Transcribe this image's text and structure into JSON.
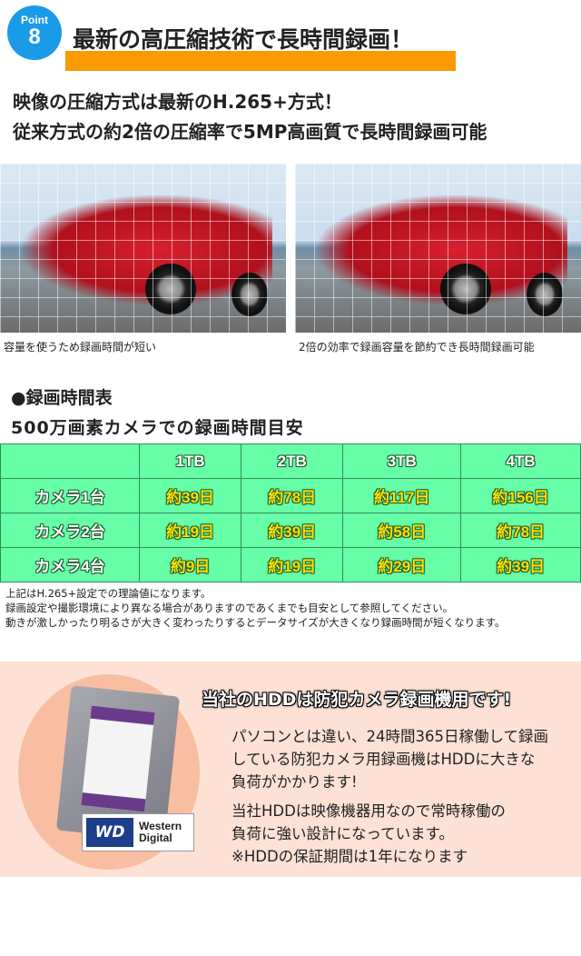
{
  "header": {
    "badge_word": "Point",
    "badge_number": "8",
    "title": "最新の高圧縮技術で長時間録画！",
    "accent": "#fa9a00",
    "badge_color": "#1a9be8"
  },
  "intro": {
    "line1": "映像の圧縮方式は最新のH.265+方式！",
    "line2": "従来方式の約2倍の圧縮率で5MP高画質で長時間録画可能"
  },
  "comparison": {
    "left_caption": "容量を使うため録画時間が短い",
    "right_caption": "2倍の効率で録画容量を節約でき長時間録画可能"
  },
  "recording": {
    "heading": "●録画時間表",
    "subheading": "500万画素カメラでの録画時間目安",
    "columns": [
      "",
      "1TB",
      "2TB",
      "3TB",
      "4TB"
    ],
    "rows": [
      {
        "label": "カメラ1台",
        "values": [
          "約39日",
          "約78日",
          "約117日",
          "約156日"
        ]
      },
      {
        "label": "カメラ2台",
        "values": [
          "約19日",
          "約39日",
          "約58日",
          "約78日"
        ]
      },
      {
        "label": "カメラ4台",
        "values": [
          "約9日",
          "約19日",
          "約29日",
          "約39日"
        ]
      }
    ],
    "notes": [
      "上記はH.265+設定での理論値になります。",
      "録画設定や撮影環境により異なる場合がありますのであくまでも目安として参照してください。",
      "動きが激しかったり明るさが大きく変わったりするとデータサイズが大きくなり録画時間が短くなります。"
    ],
    "table_color": "#66ffa8"
  },
  "hdd": {
    "heading": "当社のHDDは防犯カメラ録画機用です!",
    "para1": [
      "パソコンとは違い、24時間365日稼働して録画",
      "している防犯カメラ用録画機はHDDに大きな",
      "負荷がかかります!"
    ],
    "para2": [
      "当社HDDは映像機器用なので常時稼働の",
      "負荷に強い設計になっています。",
      "※HDDの保証期間は1年になります"
    ],
    "logo_mark": "WD",
    "logo_text1": "Western",
    "logo_text2": "Digital"
  }
}
